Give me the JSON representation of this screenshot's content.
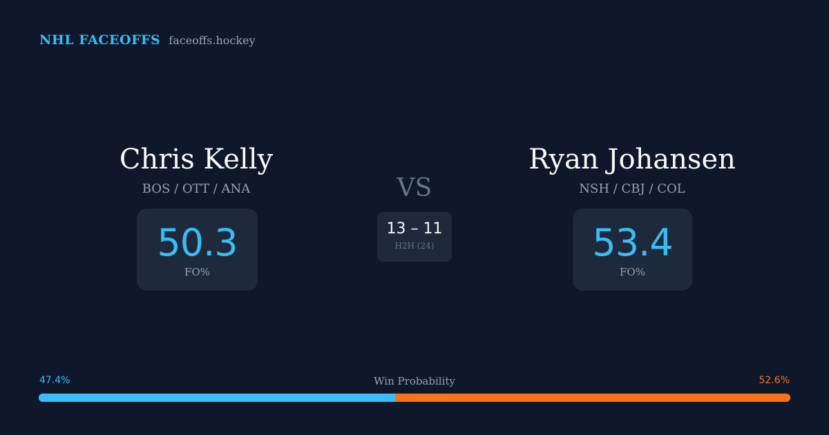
{
  "brand": {
    "name": "NHL FACEOFFS",
    "url": "faceoffs.hockey"
  },
  "player_left": {
    "name": "Chris Kelly",
    "teams": "BOS / OTT / ANA",
    "fo_pct": "50.3",
    "fo_label": "FO%"
  },
  "player_right": {
    "name": "Ryan Johansen",
    "teams": "NSH / CBJ / COL",
    "fo_pct": "53.4",
    "fo_label": "FO%"
  },
  "matchup": {
    "vs": "VS",
    "h2h_score": "13 – 11",
    "h2h_label": "H2H (24)"
  },
  "win_probability": {
    "title": "Win Probability",
    "left_label": "47.4%",
    "right_label": "52.6%",
    "left_value": 47.4,
    "right_value": 52.6
  },
  "colors": {
    "background": "#0f172a",
    "card": "#1e293b",
    "accent_blue": "#38bdf8",
    "accent_orange": "#f97316",
    "muted": "#94a3b8"
  }
}
